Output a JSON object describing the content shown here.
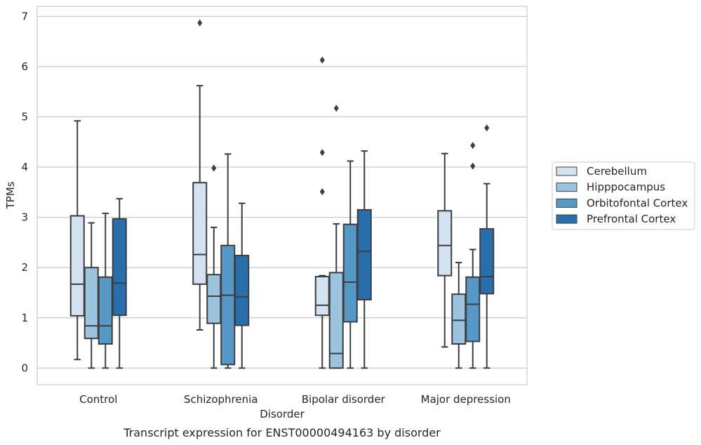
{
  "chart_data": {
    "type": "box",
    "title": "Transcript expression for ENST00000494163 by disorder",
    "xlabel": "Disorder",
    "ylabel": "TPMs",
    "ylim": [
      -0.33,
      7.2
    ],
    "yticks": [
      0,
      1,
      2,
      3,
      4,
      5,
      6,
      7
    ],
    "grid": "horizontal",
    "legend_position": "right",
    "categories": [
      "Control",
      "Schizophrenia",
      "Bipolar disorder",
      "Major depression"
    ],
    "series": [
      {
        "name": "Cerebellum",
        "color": "#d2e2f1",
        "boxes": [
          {
            "whislo": 0.17,
            "q1": 1.04,
            "med": 1.67,
            "q3": 3.03,
            "whishi": 4.92,
            "fliers": []
          },
          {
            "whislo": 0.76,
            "q1": 1.67,
            "med": 2.26,
            "q3": 3.69,
            "whishi": 5.62,
            "fliers": [
              6.87
            ]
          },
          {
            "whislo": 0.0,
            "q1": 1.05,
            "med": 1.25,
            "q3": 1.82,
            "whishi": 1.84,
            "fliers": [
              3.51,
              4.29,
              6.13
            ]
          },
          {
            "whislo": 0.42,
            "q1": 1.84,
            "med": 2.44,
            "q3": 3.13,
            "whishi": 4.27,
            "fliers": []
          }
        ]
      },
      {
        "name": "Hipppocampus",
        "color": "#9cc4df",
        "boxes": [
          {
            "whislo": 0.0,
            "q1": 0.59,
            "med": 0.84,
            "q3": 2.0,
            "whishi": 2.89,
            "fliers": []
          },
          {
            "whislo": 0.0,
            "q1": 0.89,
            "med": 1.43,
            "q3": 1.86,
            "whishi": 2.8,
            "fliers": [
              3.98
            ]
          },
          {
            "whislo": 0.0,
            "q1": 0.0,
            "med": 0.29,
            "q3": 1.9,
            "whishi": 2.87,
            "fliers": [
              5.17
            ]
          },
          {
            "whislo": 0.0,
            "q1": 0.48,
            "med": 0.95,
            "q3": 1.47,
            "whishi": 2.1,
            "fliers": []
          }
        ]
      },
      {
        "name": "Orbitofontal Cortex",
        "color": "#5799c6",
        "boxes": [
          {
            "whislo": 0.0,
            "q1": 0.48,
            "med": 0.84,
            "q3": 1.81,
            "whishi": 3.08,
            "fliers": []
          },
          {
            "whislo": 0.0,
            "q1": 0.07,
            "med": 1.45,
            "q3": 2.44,
            "whishi": 4.26,
            "fliers": []
          },
          {
            "whislo": 0.0,
            "q1": 0.92,
            "med": 1.71,
            "q3": 2.86,
            "whishi": 4.12,
            "fliers": []
          },
          {
            "whislo": 0.0,
            "q1": 0.53,
            "med": 1.27,
            "q3": 1.81,
            "whishi": 2.36,
            "fliers": [
              4.02,
              4.43
            ]
          }
        ]
      },
      {
        "name": "Prefrontal Cortex",
        "color": "#2a6fad",
        "boxes": [
          {
            "whislo": 0.0,
            "q1": 1.05,
            "med": 1.69,
            "q3": 2.97,
            "whishi": 3.37,
            "fliers": []
          },
          {
            "whislo": 0.0,
            "q1": 0.85,
            "med": 1.42,
            "q3": 2.24,
            "whishi": 3.28,
            "fliers": []
          },
          {
            "whislo": 0.0,
            "q1": 1.36,
            "med": 2.32,
            "q3": 3.15,
            "whishi": 4.32,
            "fliers": []
          },
          {
            "whislo": 0.0,
            "q1": 1.48,
            "med": 1.82,
            "q3": 2.77,
            "whishi": 3.67,
            "fliers": [
              4.78
            ]
          }
        ]
      }
    ]
  }
}
